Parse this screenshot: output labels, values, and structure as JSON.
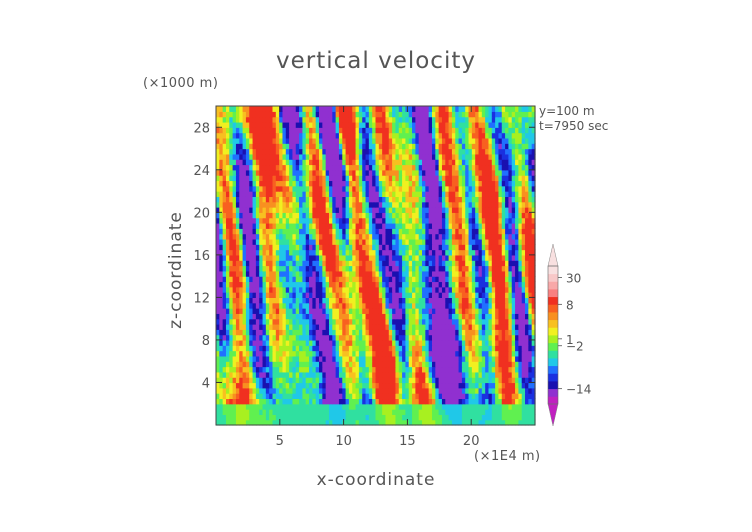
{
  "chart_data": {
    "type": "heatmap",
    "title": "vertical velocity",
    "xlabel": "x-coordinate",
    "ylabel": "z-coordinate",
    "x_unit_label": "(×1E4 m)",
    "y_unit_label": "(×1000 m)",
    "annotations": [
      "y=100 m",
      "t=7950 sec"
    ],
    "xlim": [
      0,
      25
    ],
    "ylim": [
      0,
      30
    ],
    "x_ticks": [
      5,
      10,
      15,
      20
    ],
    "y_ticks": [
      4,
      8,
      12,
      16,
      20,
      24,
      28
    ],
    "colorbar": {
      "labels": [
        "30",
        "8",
        "1",
        "−2",
        "−14"
      ],
      "colors": [
        "#c020c0",
        "#9030d0",
        "#1a10b0",
        "#1a30e0",
        "#2070ff",
        "#20c8e8",
        "#30e0a0",
        "#60f050",
        "#a8f020",
        "#f0f020",
        "#f8c020",
        "#f89020",
        "#f86020",
        "#f03020",
        "#f88080",
        "#f8a8a8",
        "#f8c8c8",
        "#f8e0e0"
      ],
      "extend": "both"
    },
    "grid": false
  }
}
